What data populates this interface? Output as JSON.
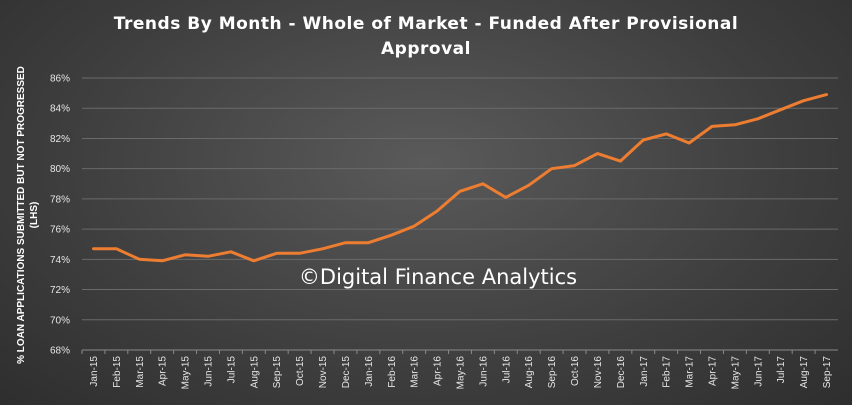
{
  "chart_data": {
    "type": "line",
    "title_line1": "Trends By Month - Whole of Market - Funded After Provisional",
    "title_line2": "Approval",
    "ylabel_line1": "% LOAN APPLICATIONS SUBMITTED BUT NOT PROGRESSED",
    "ylabel_line2": "(LHS)",
    "watermark": "©Digital Finance Analytics",
    "ylim": [
      68,
      86
    ],
    "yticks": [
      "68%",
      "70%",
      "72%",
      "74%",
      "76%",
      "78%",
      "80%",
      "82%",
      "84%",
      "86%"
    ],
    "grid": true,
    "legend": "none",
    "series_color": "#ed7d31",
    "categories": [
      "Jan-15",
      "Feb-15",
      "Mar-15",
      "Apr-15",
      "May-15",
      "Jun-15",
      "Jul-15",
      "Aug-15",
      "Sep-15",
      "Oct-15",
      "Nov-15",
      "Dec-15",
      "Jan-16",
      "Feb-16",
      "Mar-16",
      "Apr-16",
      "May-16",
      "Jun-16",
      "Jul-16",
      "Aug-16",
      "Sep-16",
      "Oct-16",
      "Nov-16",
      "Dec-16",
      "Jan-17",
      "Feb-17",
      "Mar-17",
      "Apr-17",
      "May-17",
      "Jun-17",
      "Jul-17",
      "Aug-17",
      "Sep-17"
    ],
    "values": [
      74.7,
      74.7,
      74.0,
      73.9,
      74.3,
      74.2,
      74.5,
      73.9,
      74.4,
      74.4,
      74.7,
      75.1,
      75.1,
      75.6,
      76.2,
      77.2,
      78.5,
      79.0,
      78.1,
      78.9,
      80.0,
      80.2,
      81.0,
      80.5,
      81.9,
      82.3,
      81.7,
      82.8,
      82.9,
      83.3,
      83.9,
      84.5,
      84.9
    ]
  }
}
